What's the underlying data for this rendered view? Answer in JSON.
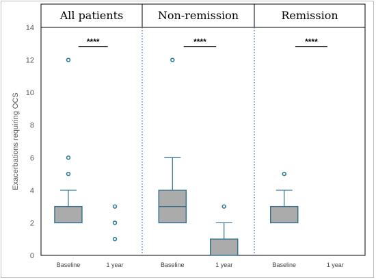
{
  "chart_data": {
    "type": "box",
    "ylabel": "Exacerbations requiring OCS",
    "ylim": [
      0,
      14
    ],
    "yticks": [
      0,
      2,
      4,
      6,
      8,
      10,
      12,
      14
    ],
    "categories": [
      "Baseline",
      "1 year"
    ],
    "colors": {
      "box_fill": "#ababab",
      "box_stroke": "#2e6e8e",
      "outlier_stroke": "#2e7d9a",
      "divider": "#4a7fc1"
    },
    "panels": [
      {
        "title": "All patients",
        "significance": "****",
        "groups": [
          {
            "label": "Baseline",
            "q1": 2,
            "median": 3,
            "q3": 3,
            "whisker_low": 2,
            "whisker_high": 4,
            "outliers": [
              5,
              6,
              12
            ]
          },
          {
            "label": "1 year",
            "q1": 0,
            "median": 0,
            "q3": 0,
            "whisker_low": 0,
            "whisker_high": 0,
            "outliers": [
              1,
              2,
              3
            ]
          }
        ]
      },
      {
        "title": "Non-remission",
        "significance": "****",
        "groups": [
          {
            "label": "Baseline",
            "q1": 2,
            "median": 3,
            "q3": 4,
            "whisker_low": 2,
            "whisker_high": 6,
            "outliers": [
              12
            ]
          },
          {
            "label": "1 year",
            "q1": 0,
            "median": 0,
            "q3": 1,
            "whisker_low": 0,
            "whisker_high": 2,
            "outliers": [
              3
            ]
          }
        ]
      },
      {
        "title": "Remission",
        "significance": "****",
        "groups": [
          {
            "label": "Baseline",
            "q1": 2,
            "median": 3,
            "q3": 3,
            "whisker_low": 2,
            "whisker_high": 4,
            "outliers": [
              5
            ]
          },
          {
            "label": "1 year",
            "q1": 0,
            "median": 0,
            "q3": 0,
            "whisker_low": 0,
            "whisker_high": 0,
            "outliers": []
          }
        ]
      }
    ]
  }
}
